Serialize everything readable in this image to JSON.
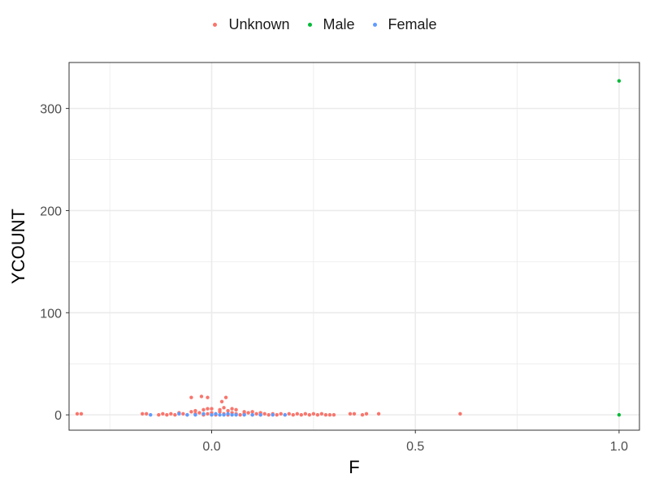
{
  "chart_data": {
    "type": "scatter",
    "xlabel": "F",
    "ylabel": "YCOUNT",
    "xlim": [
      -0.35,
      1.05
    ],
    "ylim": [
      -15,
      345
    ],
    "x_ticks": [
      0.0,
      0.5,
      1.0
    ],
    "x_tick_labels": [
      "0.0",
      "0.5",
      "1.0"
    ],
    "y_ticks": [
      0,
      100,
      200,
      300
    ],
    "y_tick_labels": [
      "0",
      "100",
      "200",
      "300"
    ],
    "grid": true,
    "legend_position": "top",
    "series": [
      {
        "name": "Unknown",
        "color": "#F8766D",
        "points": [
          [
            -0.33,
            1
          ],
          [
            -0.32,
            1
          ],
          [
            -0.17,
            1
          ],
          [
            -0.16,
            1
          ],
          [
            -0.13,
            0
          ],
          [
            -0.12,
            1
          ],
          [
            -0.11,
            0
          ],
          [
            -0.1,
            1
          ],
          [
            -0.09,
            0
          ],
          [
            -0.08,
            2
          ],
          [
            -0.07,
            1
          ],
          [
            -0.06,
            0
          ],
          [
            -0.05,
            3
          ],
          [
            -0.04,
            1
          ],
          [
            -0.03,
            2
          ],
          [
            -0.02,
            0
          ],
          [
            -0.01,
            1
          ],
          [
            0.0,
            2
          ],
          [
            0.01,
            0
          ],
          [
            0.02,
            3
          ],
          [
            0.03,
            1
          ],
          [
            0.04,
            0
          ],
          [
            0.05,
            2
          ],
          [
            0.06,
            1
          ],
          [
            0.07,
            0
          ],
          [
            0.08,
            1
          ],
          [
            0.09,
            2
          ],
          [
            0.1,
            0
          ],
          [
            0.11,
            1
          ],
          [
            0.12,
            0
          ],
          [
            0.13,
            1
          ],
          [
            0.14,
            0
          ],
          [
            0.15,
            1
          ],
          [
            0.16,
            0
          ],
          [
            0.17,
            1
          ],
          [
            0.18,
            0
          ],
          [
            0.19,
            1
          ],
          [
            0.2,
            0
          ],
          [
            0.21,
            1
          ],
          [
            0.22,
            0
          ],
          [
            0.23,
            1
          ],
          [
            0.24,
            0
          ],
          [
            0.25,
            1
          ],
          [
            0.26,
            0
          ],
          [
            0.27,
            1
          ],
          [
            0.28,
            0
          ],
          [
            0.29,
            0
          ],
          [
            0.3,
            0
          ],
          [
            0.34,
            1
          ],
          [
            0.35,
            1
          ],
          [
            0.37,
            0
          ],
          [
            0.38,
            1
          ],
          [
            0.41,
            1
          ],
          [
            0.61,
            1
          ],
          [
            -0.05,
            17
          ],
          [
            -0.025,
            18
          ],
          [
            -0.01,
            17
          ],
          [
            0.035,
            17
          ],
          [
            0.025,
            13
          ],
          [
            -0.04,
            4
          ],
          [
            -0.02,
            5
          ],
          [
            0.0,
            6
          ],
          [
            0.02,
            5
          ],
          [
            0.04,
            4
          ],
          [
            0.06,
            5
          ],
          [
            0.03,
            7
          ],
          [
            -0.01,
            6
          ],
          [
            0.08,
            3
          ],
          [
            0.1,
            3
          ],
          [
            0.12,
            2
          ],
          [
            0.05,
            6
          ]
        ]
      },
      {
        "name": "Male",
        "color": "#00BA38",
        "points": [
          [
            1.0,
            327
          ],
          [
            1.0,
            0
          ]
        ]
      },
      {
        "name": "Female",
        "color": "#619CFF",
        "points": [
          [
            -0.15,
            0
          ],
          [
            -0.08,
            1
          ],
          [
            -0.06,
            0
          ],
          [
            -0.04,
            0
          ],
          [
            -0.02,
            1
          ],
          [
            0.0,
            0
          ],
          [
            0.01,
            1
          ],
          [
            0.02,
            0
          ],
          [
            0.03,
            0
          ],
          [
            0.04,
            1
          ],
          [
            0.05,
            0
          ],
          [
            0.06,
            0
          ],
          [
            0.08,
            0
          ],
          [
            0.1,
            0
          ],
          [
            0.12,
            0
          ],
          [
            0.15,
            0
          ],
          [
            0.18,
            0
          ]
        ]
      }
    ]
  }
}
